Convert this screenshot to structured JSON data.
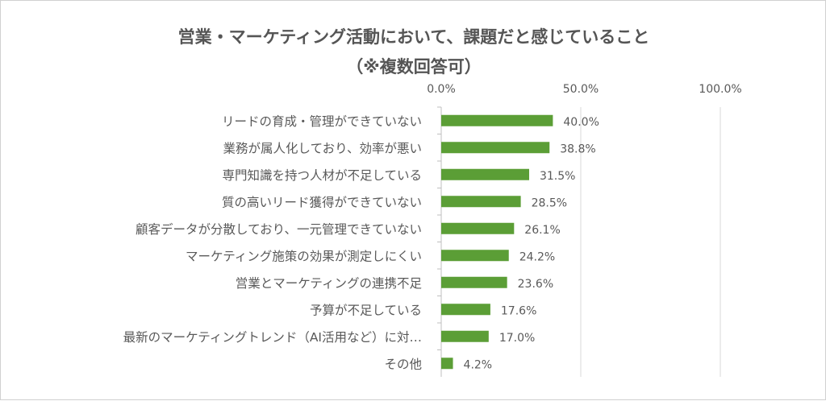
{
  "chart_data": {
    "type": "bar",
    "orientation": "horizontal",
    "title": "営業・マーケティング活動において、課題だと感じていること",
    "subtitle": "（※複数回答可）",
    "xlim": [
      0,
      100
    ],
    "x_ticks": [
      0,
      50,
      100
    ],
    "x_tick_labels": [
      "0.0%",
      "50.0%",
      "100.0%"
    ],
    "x_axis_position": "top",
    "grid": true,
    "categories": [
      "リードの育成・管理ができていない",
      "業務が属人化しており、効率が悪い",
      "専門知識を持つ人材が不足している",
      "質の高いリード獲得ができていない",
      "顧客データが分散しており、一元管理できていない",
      "マーケティング施策の効果が測定しにくい",
      "営業とマーケティングの連携不足",
      "予算が不足している",
      "最新のマーケティングトレンド（AI活用など）に対…",
      "その他"
    ],
    "values": [
      40.0,
      38.8,
      31.5,
      28.5,
      26.1,
      24.2,
      23.6,
      17.6,
      17.0,
      4.2
    ],
    "value_labels": [
      "40.0%",
      "38.8%",
      "31.5%",
      "28.5%",
      "26.1%",
      "24.2%",
      "23.6%",
      "17.6%",
      "17.0%",
      "4.2%"
    ],
    "colors": {
      "bar": "#5b9e36",
      "text": "#595959",
      "grid": "#d9d9d9",
      "axis": "#bfbfbf"
    }
  }
}
